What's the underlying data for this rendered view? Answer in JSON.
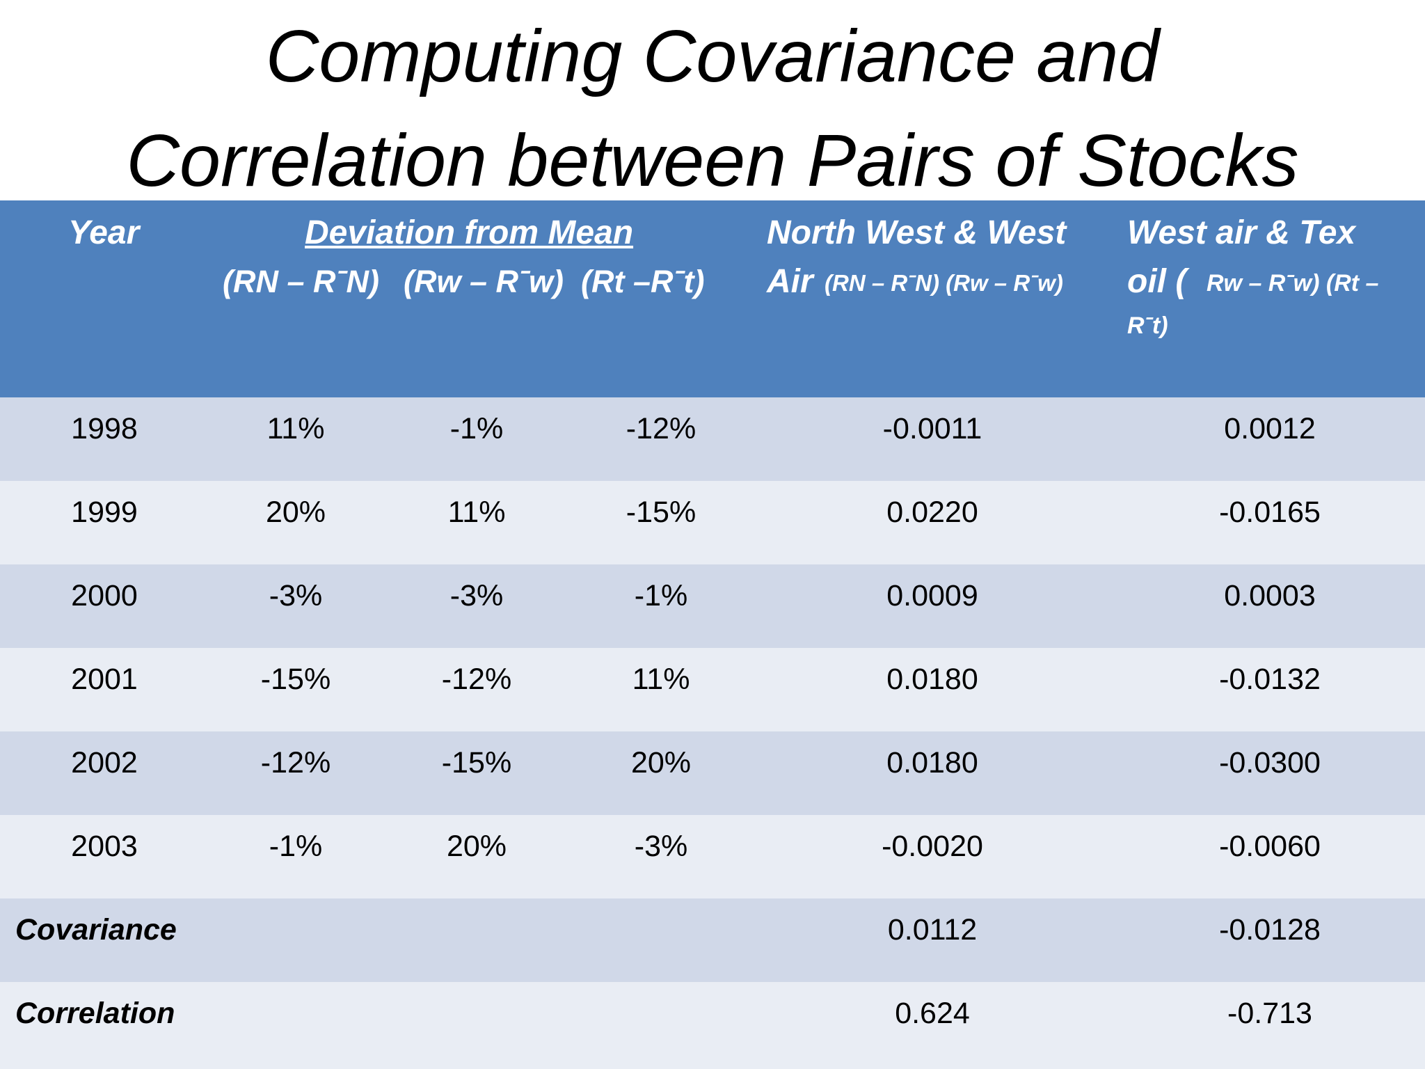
{
  "title": {
    "line1": "Computing Covariance and",
    "line2": "Correlation between Pairs of Stocks"
  },
  "header": {
    "year": "Year",
    "deviation_from_mean": "Deviation from Mean",
    "dev_n": "(RN – RˉN)",
    "dev_w": "(Rw – Rˉw)",
    "dev_t": "(Rt –Rˉt)",
    "nw_title_line1": "North West & West",
    "nw_title_air": "Air",
    "nw_formula": "(RN – RˉN) (Rw – Rˉw)",
    "wt_title_line1": "West air & Tex",
    "wt_title_oil": "oil (",
    "wt_formula_line2": "Rw – Rˉw) (Rt –",
    "wt_formula_line3": "Rˉt)"
  },
  "rows": [
    {
      "year": "1998",
      "n": "11%",
      "w": "-1%",
      "t": "-12%",
      "nw": "-0.0011",
      "wt": "0.0012"
    },
    {
      "year": "1999",
      "n": "20%",
      "w": "11%",
      "t": "-15%",
      "nw": "0.0220",
      "wt": "-0.0165"
    },
    {
      "year": "2000",
      "n": "-3%",
      "w": "-3%",
      "t": "-1%",
      "nw": "0.0009",
      "wt": "0.0003"
    },
    {
      "year": "2001",
      "n": "-15%",
      "w": "-12%",
      "t": "11%",
      "nw": "0.0180",
      "wt": "-0.0132"
    },
    {
      "year": "2002",
      "n": "-12%",
      "w": "-15%",
      "t": "20%",
      "nw": "0.0180",
      "wt": "-0.0300"
    },
    {
      "year": "2003",
      "n": "-1%",
      "w": "20%",
      "t": "-3%",
      "nw": "-0.0020",
      "wt": "-0.0060"
    }
  ],
  "summary": {
    "covariance_label": "Covariance",
    "covariance_nw": "0.0112",
    "covariance_wt": "-0.0128",
    "correlation_label": "Correlation",
    "correlation_nw": "0.624",
    "correlation_wt": "-0.713"
  }
}
